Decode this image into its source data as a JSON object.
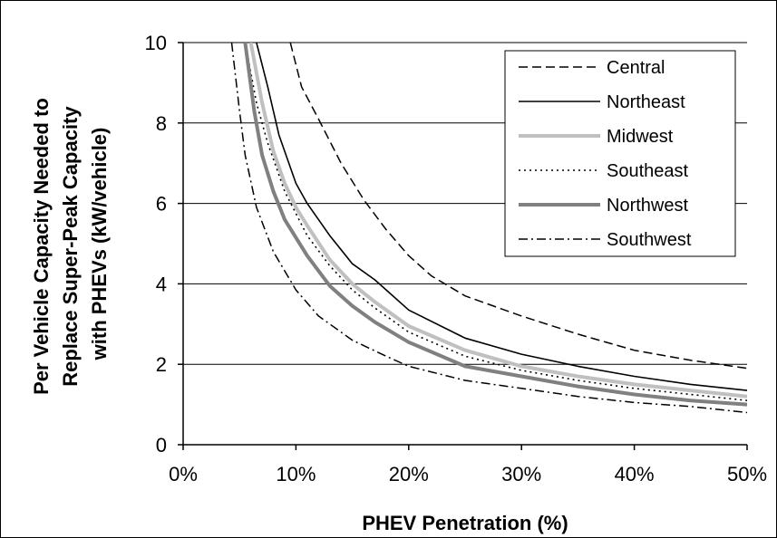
{
  "chart_data": {
    "type": "line",
    "xlabel": "PHEV Penetration (%)",
    "ylabel_lines": [
      "Per Vehicle Capacity Needed to",
      "Replace Super-Peak Capacity",
      "with PHEVs (kW/vehicle)"
    ],
    "xlim": [
      0,
      50
    ],
    "ylim": [
      0,
      10
    ],
    "x_ticks": [
      0,
      10,
      20,
      30,
      40,
      50
    ],
    "x_tick_labels": [
      "0%",
      "10%",
      "20%",
      "30%",
      "40%",
      "50%"
    ],
    "y_ticks": [
      0,
      2,
      4,
      6,
      8,
      10
    ],
    "y_tick_labels": [
      "0",
      "2",
      "4",
      "6",
      "8",
      "10"
    ],
    "grid": "horizontal",
    "legend_position": "top-right",
    "series": [
      {
        "name": "Central",
        "color": "#000000",
        "style": "dashed",
        "points": [
          [
            9.5,
            10
          ],
          [
            10.5,
            8.9
          ],
          [
            12,
            8.1
          ],
          [
            14,
            7.0
          ],
          [
            16,
            6.1
          ],
          [
            18,
            5.35
          ],
          [
            20,
            4.7
          ],
          [
            22,
            4.2
          ],
          [
            25,
            3.7
          ],
          [
            30,
            3.2
          ],
          [
            35,
            2.75
          ],
          [
            40,
            2.35
          ],
          [
            45,
            2.1
          ],
          [
            50,
            1.9
          ]
        ]
      },
      {
        "name": "Northeast",
        "color": "#000000",
        "style": "solid",
        "points": [
          [
            6.5,
            10
          ],
          [
            7.5,
            8.9
          ],
          [
            8.5,
            7.7
          ],
          [
            10,
            6.5
          ],
          [
            11,
            6.0
          ],
          [
            13,
            5.2
          ],
          [
            15,
            4.5
          ],
          [
            17,
            4.1
          ],
          [
            20,
            3.35
          ],
          [
            25,
            2.65
          ],
          [
            30,
            2.25
          ],
          [
            35,
            1.95
          ],
          [
            40,
            1.7
          ],
          [
            45,
            1.5
          ],
          [
            50,
            1.35
          ]
        ]
      },
      {
        "name": "Midwest",
        "color": "#c0c0c0",
        "style": "thick",
        "points": [
          [
            6.0,
            10
          ],
          [
            7,
            8.5
          ],
          [
            8,
            7.3
          ],
          [
            9,
            6.5
          ],
          [
            10,
            5.9
          ],
          [
            11,
            5.45
          ],
          [
            13,
            4.6
          ],
          [
            15,
            4.0
          ],
          [
            17,
            3.55
          ],
          [
            20,
            2.95
          ],
          [
            25,
            2.35
          ],
          [
            30,
            1.95
          ],
          [
            35,
            1.7
          ],
          [
            40,
            1.5
          ],
          [
            45,
            1.35
          ],
          [
            50,
            1.2
          ]
        ]
      },
      {
        "name": "Southeast",
        "color": "#000000",
        "style": "dotted",
        "points": [
          [
            5.5,
            10
          ],
          [
            6.5,
            8.5
          ],
          [
            7.5,
            7.5
          ],
          [
            9,
            6.3
          ],
          [
            11,
            5.2
          ],
          [
            13,
            4.45
          ],
          [
            15,
            3.85
          ],
          [
            17,
            3.4
          ],
          [
            20,
            2.8
          ],
          [
            25,
            2.2
          ],
          [
            30,
            1.85
          ],
          [
            35,
            1.6
          ],
          [
            40,
            1.4
          ],
          [
            45,
            1.25
          ],
          [
            50,
            1.1
          ]
        ]
      },
      {
        "name": "Northwest",
        "color": "#808080",
        "style": "thick",
        "points": [
          [
            5.5,
            10
          ],
          [
            6.3,
            8.3
          ],
          [
            7,
            7.2
          ],
          [
            8,
            6.3
          ],
          [
            9,
            5.6
          ],
          [
            11,
            4.7
          ],
          [
            13,
            3.95
          ],
          [
            15,
            3.45
          ],
          [
            17,
            3.05
          ],
          [
            20,
            2.55
          ],
          [
            25,
            1.95
          ],
          [
            30,
            1.7
          ],
          [
            35,
            1.45
          ],
          [
            40,
            1.25
          ],
          [
            45,
            1.1
          ],
          [
            50,
            1.0
          ]
        ]
      },
      {
        "name": "Southwest",
        "color": "#000000",
        "style": "dashdot",
        "points": [
          [
            4.3,
            10
          ],
          [
            5,
            8.3
          ],
          [
            5.5,
            7.2
          ],
          [
            6.5,
            5.9
          ],
          [
            8,
            4.8
          ],
          [
            10,
            3.85
          ],
          [
            12,
            3.2
          ],
          [
            15,
            2.6
          ],
          [
            18,
            2.2
          ],
          [
            20,
            1.95
          ],
          [
            25,
            1.6
          ],
          [
            30,
            1.4
          ],
          [
            35,
            1.2
          ],
          [
            40,
            1.05
          ],
          [
            45,
            0.95
          ],
          [
            50,
            0.8
          ]
        ]
      }
    ]
  }
}
